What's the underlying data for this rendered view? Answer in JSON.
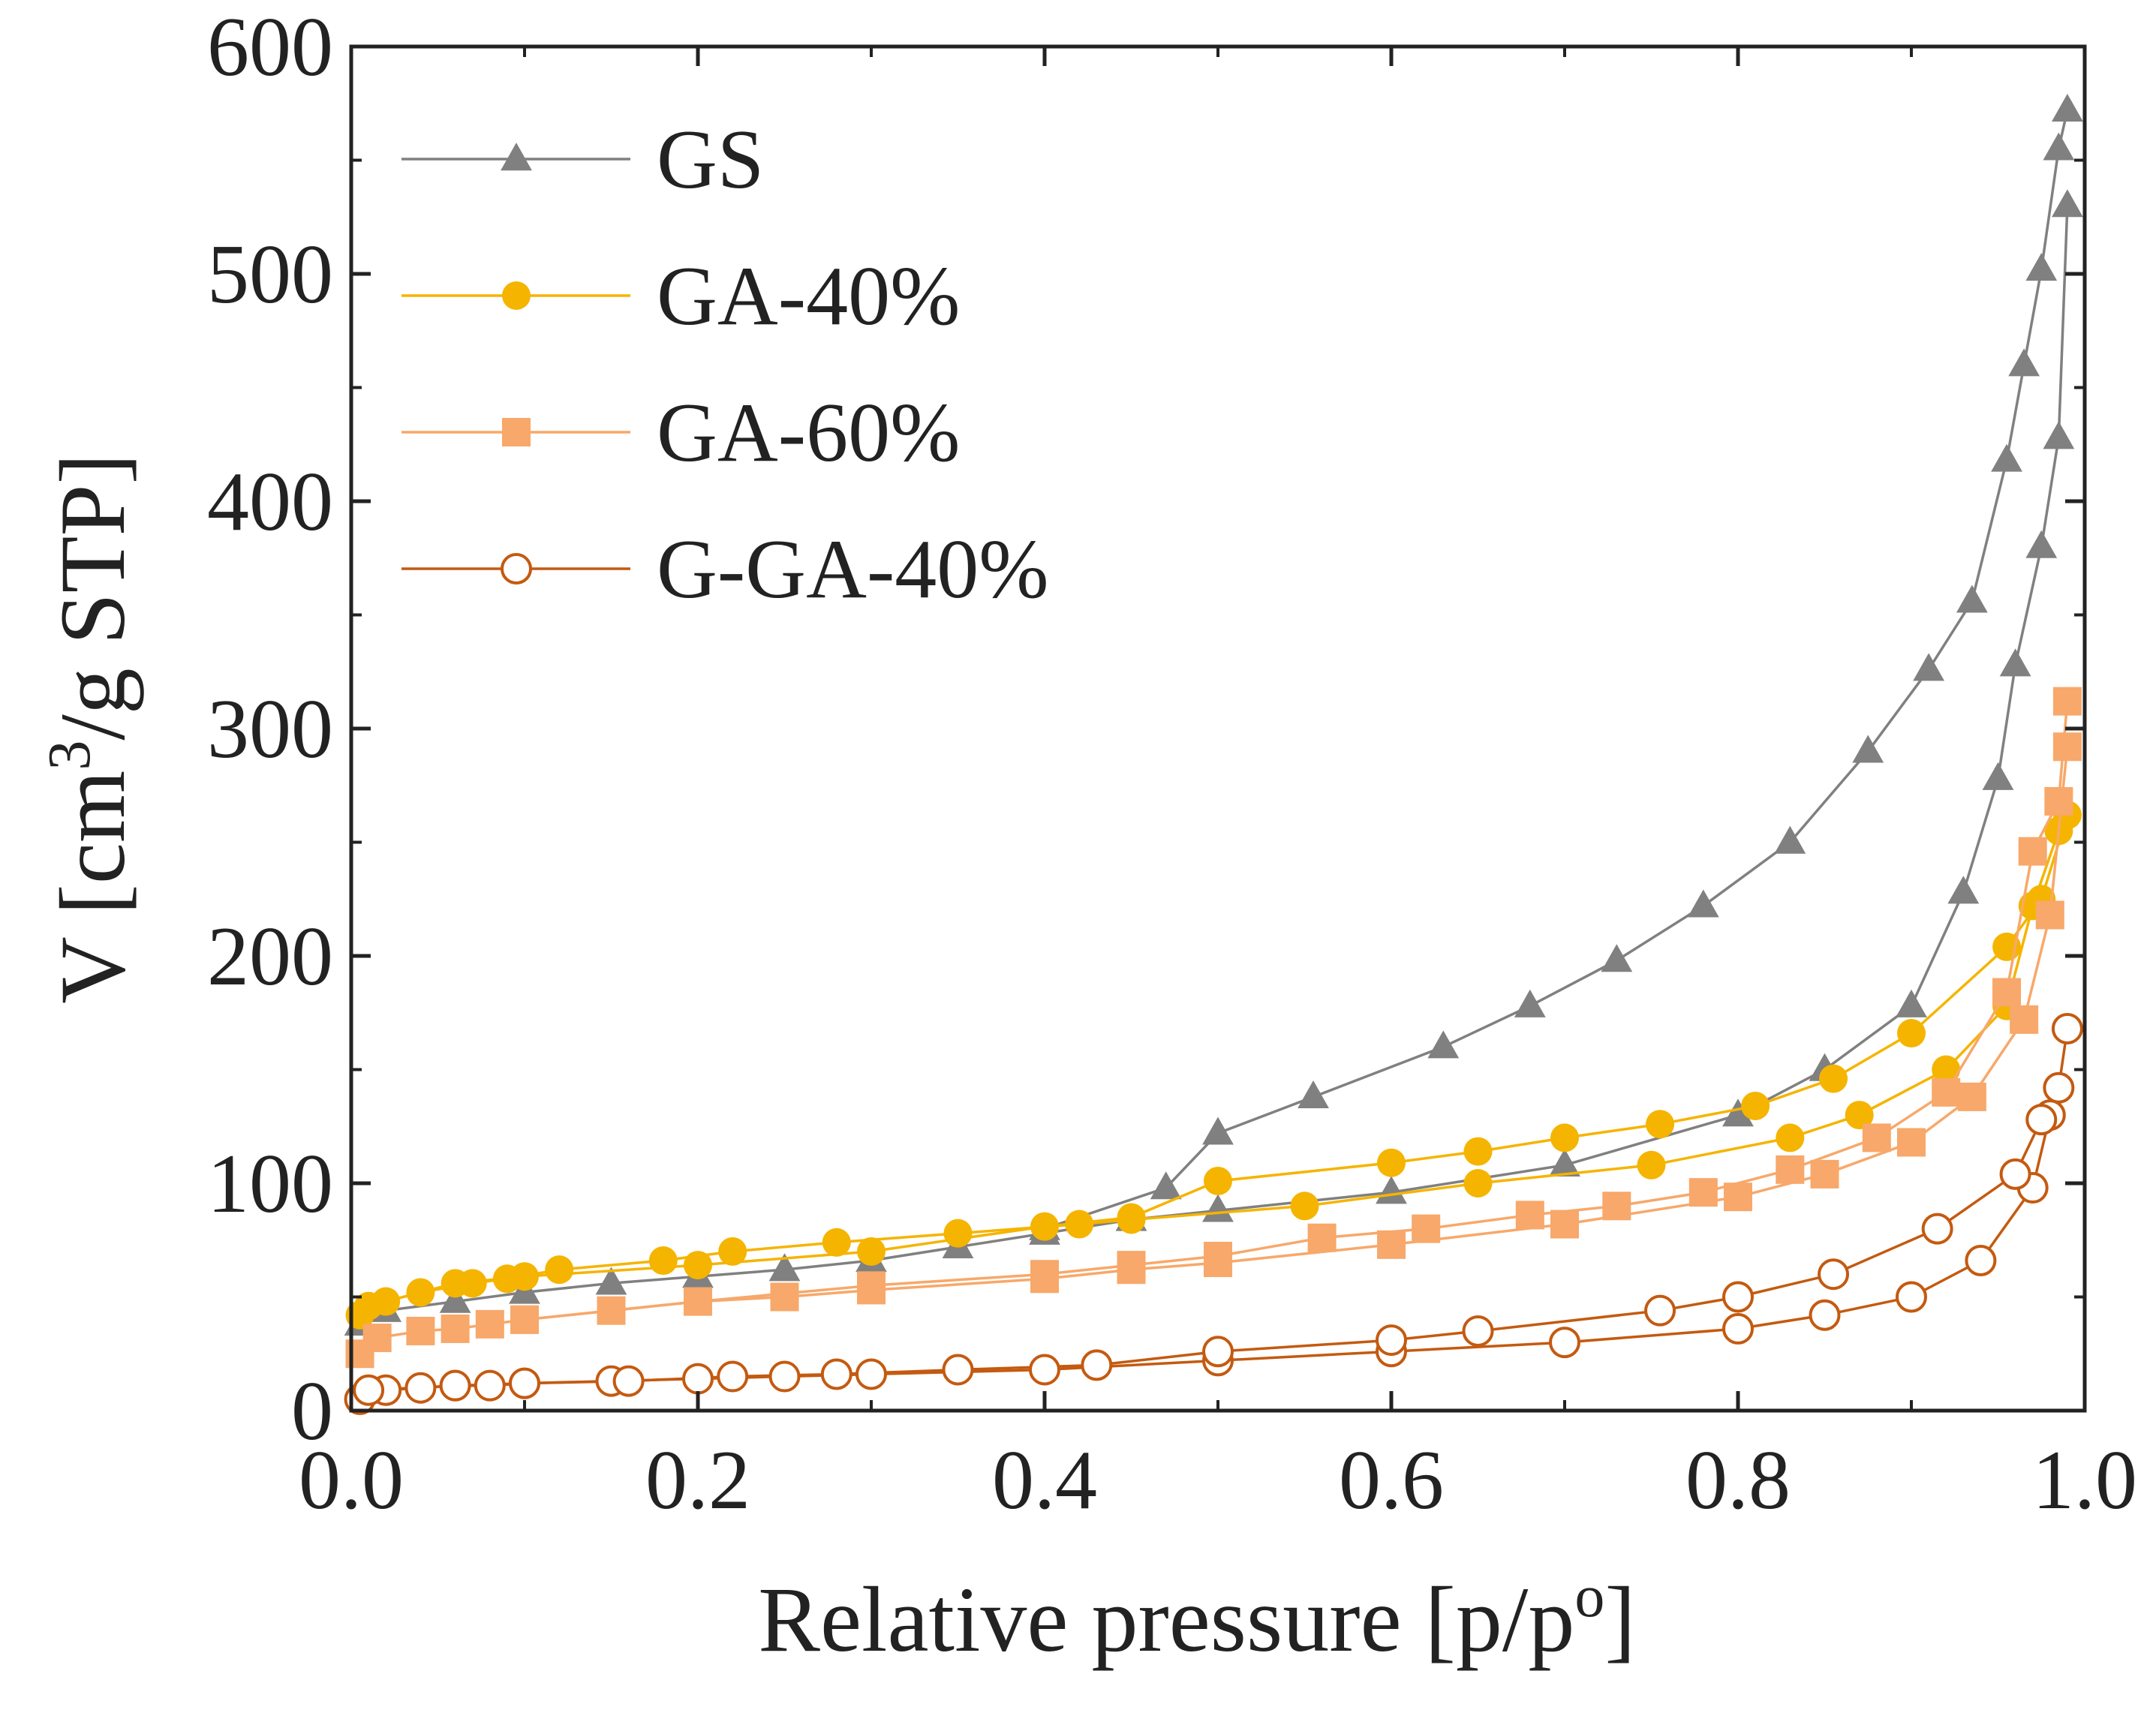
{
  "chart_data": {
    "type": "line",
    "title": "",
    "xlabel": "Relative pressure [p/p",
    "xlabel_sup": "o",
    "xlabel_end": "]",
    "ylabel": "V [cm",
    "ylabel_sup": "3",
    "ylabel_end": "/g STP]",
    "xlim": [
      0.0,
      1.0
    ],
    "ylim": [
      0,
      600
    ],
    "xticks": [
      "0.0",
      "0.2",
      "0.4",
      "0.6",
      "0.8",
      "1.0"
    ],
    "yticks": [
      "0",
      "100",
      "200",
      "300",
      "400",
      "500",
      "600"
    ],
    "grid": false,
    "legend_position": "top-left",
    "series": [
      {
        "name": "GS",
        "color": "#808080",
        "marker": "triangle",
        "adsorption": {
          "x": [
            0.005,
            0.02,
            0.06,
            0.1,
            0.15,
            0.2,
            0.25,
            0.3,
            0.35,
            0.4,
            0.45,
            0.5,
            0.6,
            0.7,
            0.8,
            0.85,
            0.9,
            0.93,
            0.95,
            0.96,
            0.975,
            0.985,
            0.99
          ],
          "y": [
            38,
            44,
            48,
            52,
            56,
            59,
            62,
            66,
            72,
            78,
            84,
            88,
            96,
            108,
            130,
            150,
            178,
            228,
            278,
            328,
            380,
            428,
            530
          ]
        },
        "desorption": {
          "x": [
            0.99,
            0.985,
            0.975,
            0.965,
            0.955,
            0.935,
            0.91,
            0.875,
            0.83,
            0.78,
            0.73,
            0.68,
            0.63,
            0.555,
            0.5,
            0.47,
            0.4
          ],
          "y": [
            572,
            555,
            502,
            460,
            418,
            356,
            326,
            290,
            250,
            222,
            198,
            178,
            160,
            138,
            122,
            98,
            80
          ]
        }
      },
      {
        "name": "GA-40%",
        "color": "#F5B400",
        "marker": "circle",
        "adsorption": {
          "x": [
            0.005,
            0.02,
            0.04,
            0.07,
            0.09,
            0.12,
            0.18,
            0.22,
            0.28,
            0.35,
            0.42,
            0.45,
            0.55,
            0.65,
            0.75,
            0.83,
            0.87,
            0.92,
            0.955,
            0.97,
            0.985,
            0.99
          ],
          "y": [
            42,
            48,
            52,
            56,
            58,
            62,
            66,
            70,
            74,
            78,
            82,
            84,
            90,
            100,
            108,
            120,
            130,
            150,
            178,
            222,
            255,
            262
          ]
        },
        "desorption": {
          "x": [
            0.99,
            0.975,
            0.955,
            0.9,
            0.855,
            0.81,
            0.755,
            0.7,
            0.65,
            0.6,
            0.5,
            0.45,
            0.4,
            0.3,
            0.2,
            0.1,
            0.06,
            0.01
          ],
          "y": [
            262,
            225,
            204,
            166,
            146,
            134,
            126,
            120,
            114,
            109,
            101,
            85,
            81,
            70,
            64,
            59,
            56,
            46
          ]
        }
      },
      {
        "name": "GA-60%",
        "color": "#F7A86A",
        "marker": "square",
        "adsorption": {
          "x": [
            0.005,
            0.015,
            0.04,
            0.06,
            0.08,
            0.1,
            0.15,
            0.2,
            0.25,
            0.3,
            0.4,
            0.45,
            0.5,
            0.6,
            0.7,
            0.8,
            0.85,
            0.9,
            0.935,
            0.965,
            0.98,
            0.99
          ],
          "y": [
            25,
            32,
            35,
            36,
            38,
            40,
            44,
            48,
            50,
            53,
            58,
            62,
            65,
            73,
            82,
            94,
            104,
            118,
            138,
            172,
            218,
            292
          ]
        },
        "desorption": {
          "x": [
            0.99,
            0.985,
            0.97,
            0.955,
            0.92,
            0.88,
            0.83,
            0.78,
            0.73,
            0.68,
            0.62,
            0.56,
            0.5,
            0.45,
            0.4,
            0.3,
            0.2,
            0.1
          ],
          "y": [
            312,
            268,
            246,
            184,
            140,
            120,
            106,
            96,
            90,
            86,
            80,
            76,
            68,
            64,
            60,
            55,
            48,
            40
          ]
        }
      },
      {
        "name": "G-GA-40%",
        "color": "#C45A10",
        "marker": "open-circle",
        "adsorption": {
          "x": [
            0.005,
            0.02,
            0.04,
            0.06,
            0.08,
            0.1,
            0.15,
            0.2,
            0.25,
            0.3,
            0.4,
            0.5,
            0.6,
            0.7,
            0.8,
            0.85,
            0.9,
            0.94,
            0.97,
            0.98
          ],
          "y": [
            5,
            9,
            10,
            11,
            11,
            12,
            13,
            14,
            15,
            16,
            18,
            22,
            26,
            30,
            36,
            42,
            50,
            66,
            98,
            130
          ]
        },
        "desorption": {
          "x": [
            0.99,
            0.985,
            0.975,
            0.96,
            0.915,
            0.855,
            0.8,
            0.755,
            0.65,
            0.6,
            0.5,
            0.43,
            0.35,
            0.28,
            0.22,
            0.16,
            0.1,
            0.06,
            0.01
          ],
          "y": [
            168,
            142,
            128,
            104,
            80,
            60,
            50,
            44,
            35,
            31,
            26,
            20,
            18,
            16,
            15,
            13,
            12,
            11,
            9
          ]
        }
      }
    ]
  }
}
